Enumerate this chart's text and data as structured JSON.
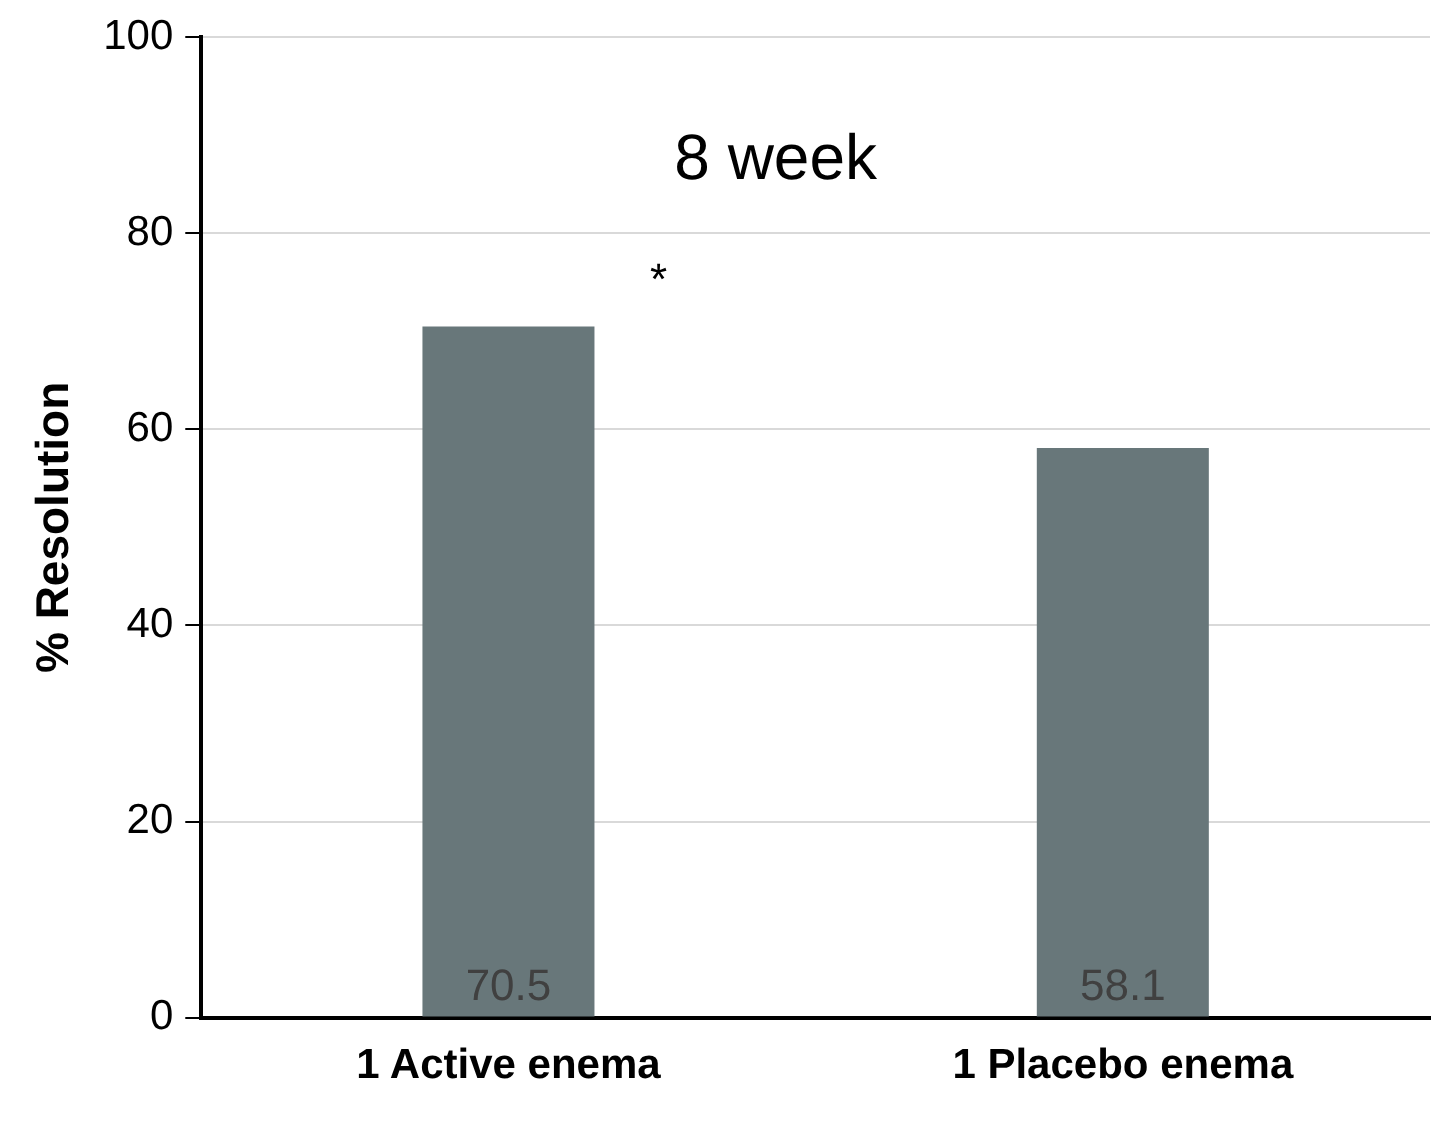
{
  "chart_data": {
    "type": "bar",
    "title": "8 week",
    "ylabel": "% Resolution",
    "categories": [
      "1 Active enema",
      "1 Placebo enema"
    ],
    "values": [
      70.5,
      58.1
    ],
    "color": "#68777a",
    "ylim": [
      0,
      100
    ],
    "yticks": [
      0,
      20,
      40,
      60,
      80,
      100
    ],
    "grid": "y",
    "legend": false,
    "data_labels": true,
    "annotations": [
      "*"
    ]
  }
}
